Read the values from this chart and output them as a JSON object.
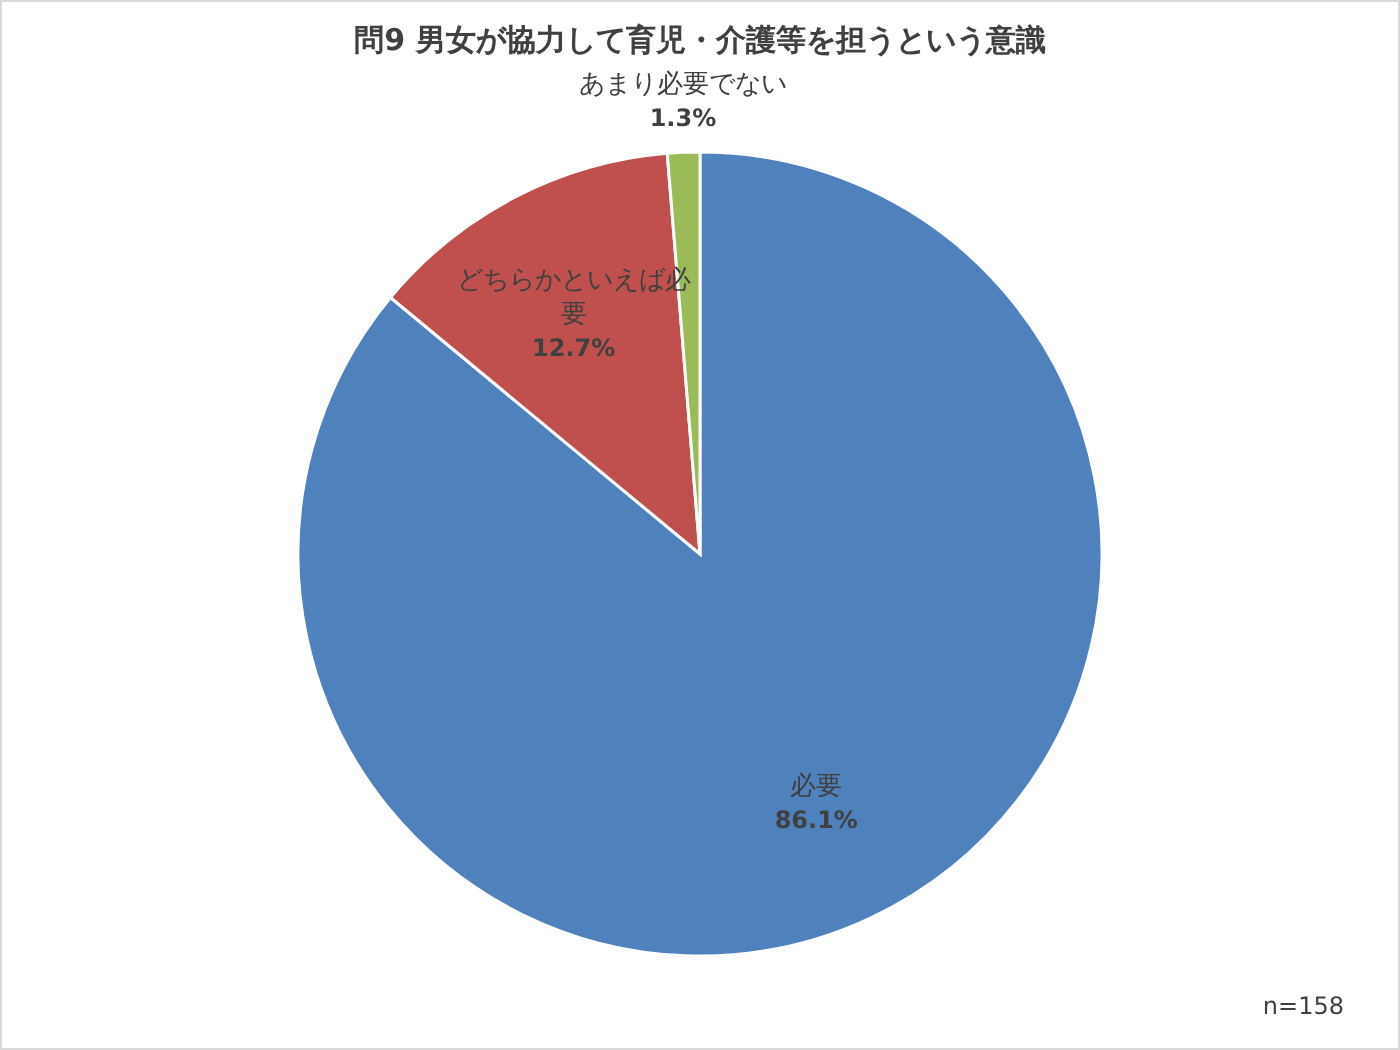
{
  "chart_data": {
    "type": "pie",
    "title": "問9  男女が協力して育児・介護等を担うという意識",
    "categories": [
      "必要",
      "どちらかといえば必要",
      "あまり必要でない"
    ],
    "values": [
      86.1,
      12.7,
      1.3
    ],
    "value_labels": [
      "86.1%",
      "12.7%",
      "1.3%"
    ],
    "colors": [
      "#4f81bd",
      "#c0504d",
      "#9bbb59"
    ],
    "annotations": [
      "n=158"
    ]
  }
}
